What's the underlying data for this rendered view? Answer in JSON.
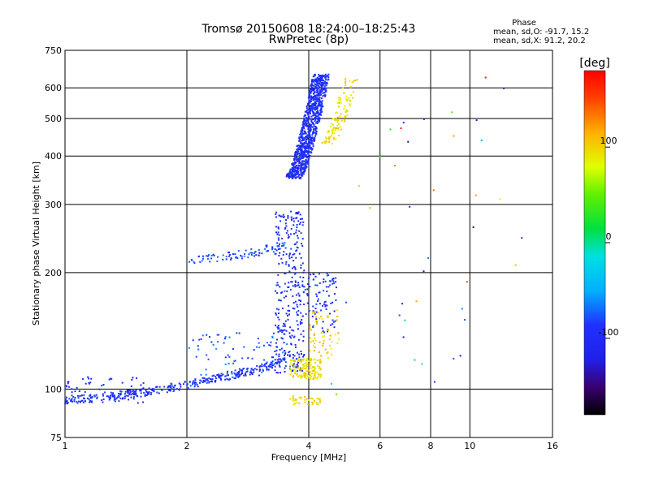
{
  "chart_data": {
    "type": "scatter",
    "title": "Tromsø 20150608 18:24:00–18:25:43",
    "subtitle": "RwPretec (8p)",
    "xlabel": "Frequency [MHz]",
    "ylabel": "Stationary phase Virtual Height [km]",
    "x_scale": "log",
    "y_scale": "log",
    "xlim": [
      1,
      16
    ],
    "ylim": [
      75,
      750
    ],
    "x_ticks": [
      1,
      2,
      4,
      6,
      8,
      10,
      16
    ],
    "y_ticks": [
      75,
      100,
      200,
      300,
      400,
      500,
      600,
      750
    ],
    "grid": true,
    "stats": {
      "heading": "Phase",
      "line_o": "mean, sd,O: -91.7, 15.2",
      "line_x": "mean, sd,X:  91.2, 20.2"
    },
    "colorbar": {
      "label": "[deg]",
      "ticks": [
        100,
        0,
        -100
      ],
      "range": [
        -180,
        180
      ]
    },
    "clusters": [
      {
        "name": "low E-region trace",
        "x_range": [
          1.0,
          3.5
        ],
        "y_range": [
          94,
          118
        ],
        "phase": -95,
        "count": 360,
        "kind": "rising"
      },
      {
        "name": "E scatter low freq",
        "x_range": [
          1.0,
          1.6
        ],
        "y_range": [
          92,
          108
        ],
        "phase": -100,
        "count": 60,
        "kind": "cloud"
      },
      {
        "name": "E scatter mid",
        "x_range": [
          2.0,
          3.6
        ],
        "y_range": [
          108,
          140
        ],
        "phase": -80,
        "count": 70,
        "kind": "cloud"
      },
      {
        "name": "cusp column",
        "x_range": [
          3.3,
          3.9
        ],
        "y_range": [
          110,
          290
        ],
        "phase": -100,
        "count": 320,
        "kind": "cloud"
      },
      {
        "name": "blue bulge",
        "x_range": [
          3.9,
          4.7
        ],
        "y_range": [
          140,
          200
        ],
        "phase": -95,
        "count": 90,
        "kind": "cloud"
      },
      {
        "name": "yellow low blob",
        "x_range": [
          3.6,
          4.3
        ],
        "y_range": [
          106,
          120
        ],
        "phase": 95,
        "count": 140,
        "kind": "cloud"
      },
      {
        "name": "yellow mid blob",
        "x_range": [
          4.0,
          4.8
        ],
        "y_range": [
          120,
          160
        ],
        "phase": 100,
        "count": 60,
        "kind": "cloud"
      },
      {
        "name": "bottom cluster",
        "x_range": [
          3.6,
          4.3
        ],
        "y_range": [
          91,
          96
        ],
        "phase": 95,
        "count": 40,
        "kind": "cloud"
      },
      {
        "name": "F-layer trace",
        "x_range": [
          2.0,
          3.5
        ],
        "y_range": [
          215,
          235
        ],
        "phase": -85,
        "count": 80,
        "kind": "trace"
      },
      {
        "name": "F2 ordinary",
        "x_range": [
          3.5,
          4.6
        ],
        "y_range": [
          350,
          650
        ],
        "phase": -100,
        "count": 950,
        "kind": "steep"
      },
      {
        "name": "F2 extraordinary",
        "x_range": [
          4.3,
          5.4
        ],
        "y_range": [
          430,
          640
        ],
        "phase": 95,
        "count": 110,
        "kind": "steep"
      },
      {
        "name": "sparse points",
        "x_range": [
          4.5,
          13.5
        ],
        "y_range": [
          90,
          680
        ],
        "phase": 60,
        "count": 40,
        "kind": "sparse"
      }
    ]
  }
}
